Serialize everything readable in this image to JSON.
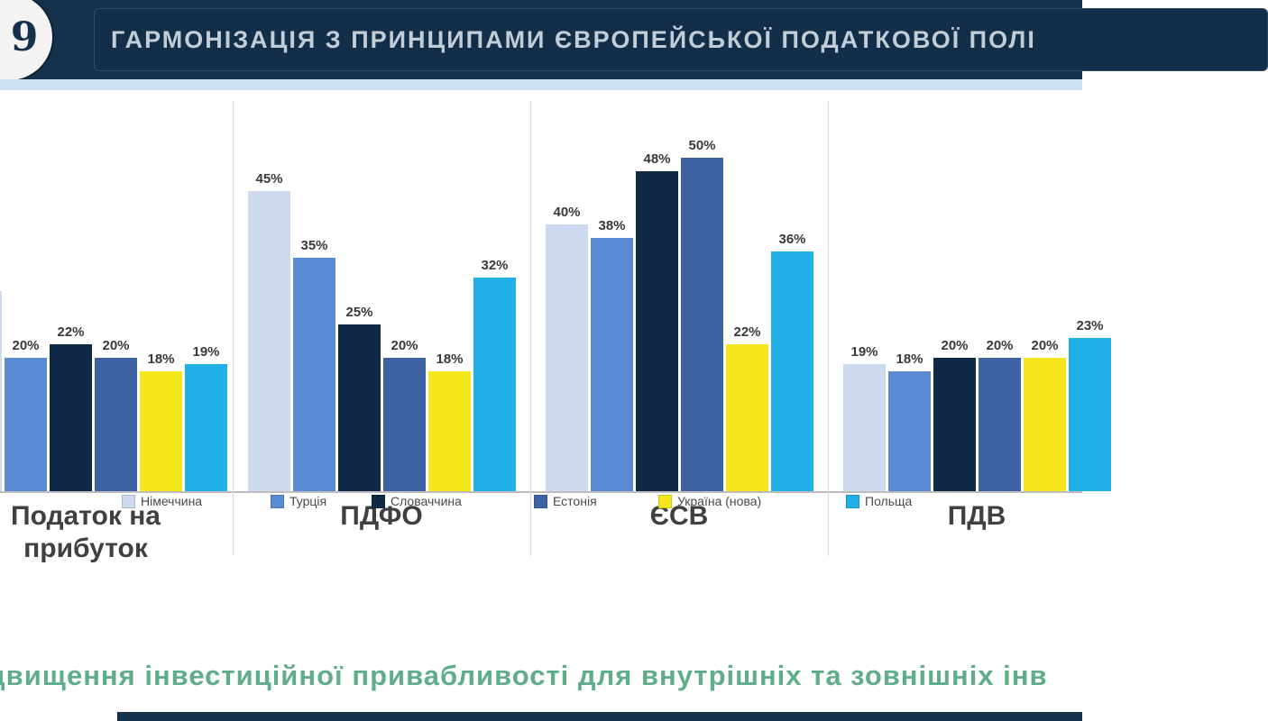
{
  "header": {
    "title": "ГАРМОНІЗАЦІЯ З ПРИНЦИПАМИ ЄВРОПЕЙСЬКОЇ ПОДАТКОВОЇ ПОЛІ",
    "logo_glyph": "9"
  },
  "chart_data": {
    "type": "bar",
    "title": "",
    "categories": [
      "Податок на прибуток",
      "ПДФО",
      "ЄСВ",
      "ПДВ"
    ],
    "series": [
      {
        "name": "Німеччина",
        "color": "#ccd9ee",
        "values": [
          30,
          45,
          40,
          19
        ]
      },
      {
        "name": "Турція",
        "color": "#5a8ad2",
        "values": [
          20,
          35,
          38,
          18
        ]
      },
      {
        "name": "Словаччина",
        "color": "#0f2947",
        "values": [
          22,
          25,
          48,
          20
        ]
      },
      {
        "name": "Естонія",
        "color": "#3d63a5",
        "values": [
          20,
          20,
          50,
          20
        ]
      },
      {
        "name": "Україна (нова)",
        "color": "#f6e71d",
        "values": [
          18,
          18,
          22,
          20
        ]
      },
      {
        "name": "Польща",
        "color": "#22aee6",
        "values": [
          19,
          32,
          36,
          23
        ]
      }
    ],
    "value_suffix": "%",
    "xlabel": "",
    "ylabel": "",
    "ylim": [
      0,
      55
    ],
    "grid": false,
    "legend_position": "bottom",
    "data_labels": true
  },
  "footer": {
    "note": "двищення інвестиційної привабливості для внутрішніх та зовнішніх інв"
  },
  "colors": {
    "header_bg": "#15304b",
    "panel_bg": "#132e49",
    "title_color": "#c2cdd8",
    "strip_bg": "#cfe2f4",
    "note_color": "#5fae89"
  }
}
